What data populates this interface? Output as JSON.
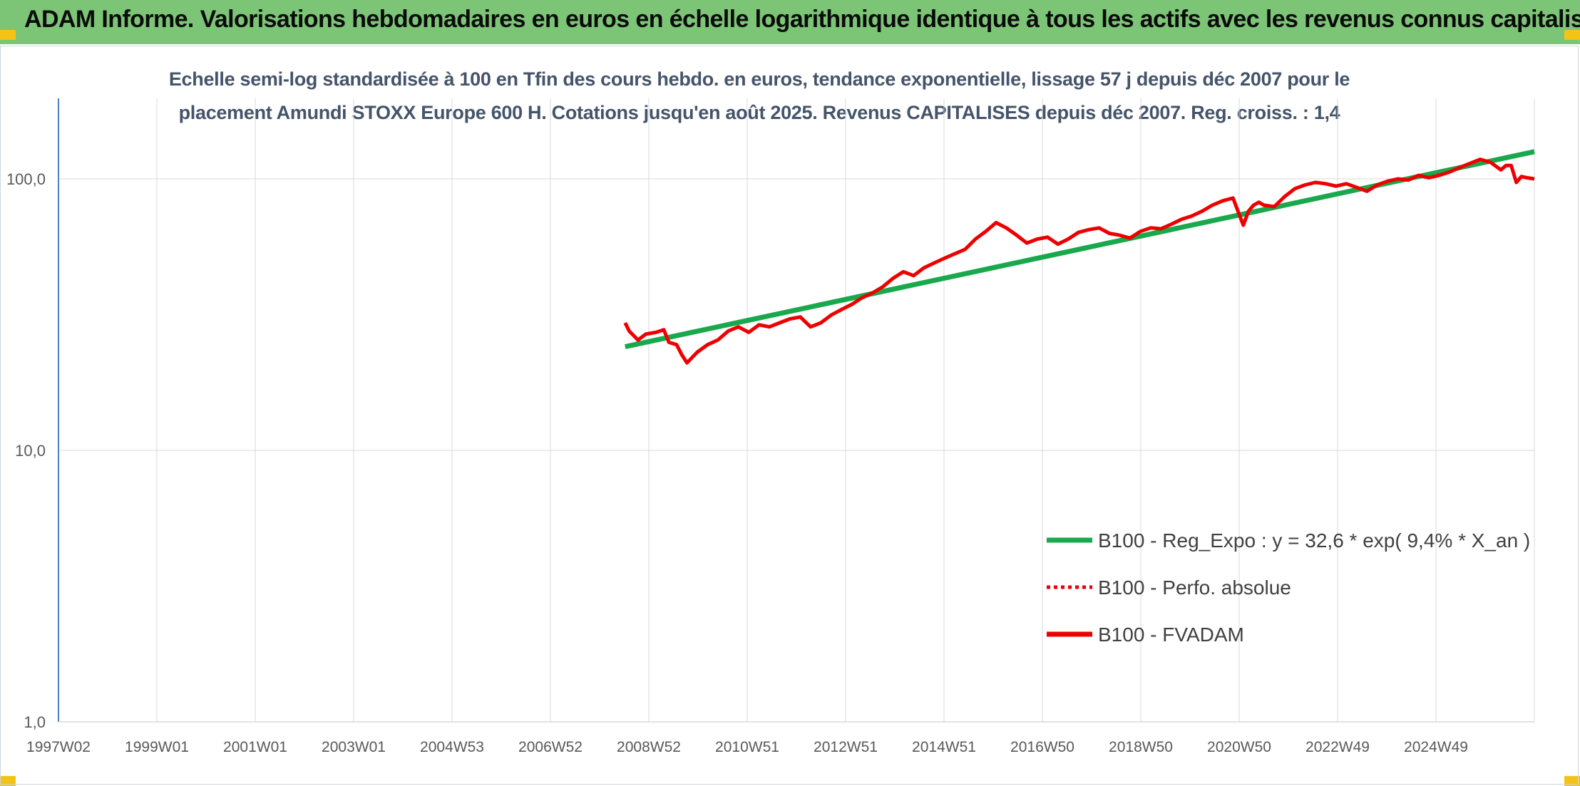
{
  "banner": {
    "title": "ADAM Informe. Valorisations hebdomadaires en euros en échelle logarithmique identique à tous les actifs avec les revenus connus capitalisés"
  },
  "colors": {
    "banner_bg": "#7cc576",
    "corner_marker": "#f3c316",
    "trend_line": "#19a84c",
    "price_line": "#ee0000",
    "grid": "#d9d9d9",
    "axis": "#4f81bd"
  },
  "chart_data": {
    "type": "line",
    "title_line1": "Echelle semi-log standardisée à 100 en Tfin des cours hebdo. en euros, tendance exponentielle, lissage 57 j depuis déc 2007 pour le",
    "title_line2": "placement Amundi STOXX Europe 600 H. Cotations jusqu'en août 2025. Revenus CAPITALISES depuis déc 2007. Reg. croiss. : 1,4",
    "yscale": "log",
    "ylim": [
      1,
      200
    ],
    "ytick_labels": [
      "1,0",
      "10,0",
      "100,0"
    ],
    "ytick_values": [
      1,
      10,
      100
    ],
    "x_tick_labels": [
      "1997W02",
      "1999W01",
      "2001W01",
      "2003W01",
      "2004W53",
      "2006W52",
      "2008W52",
      "2010W51",
      "2012W51",
      "2014W51",
      "2016W50",
      "2018W50",
      "2020W50",
      "2022W49",
      "2024W49"
    ],
    "x_range_years": [
      1997.0,
      2025.65
    ],
    "grid": "vertical and horizontal",
    "legend_position": "bottom-right, inside plot",
    "legend": [
      {
        "label": "B100 - Reg_Expo : y = 32,6 * exp( 9,4% *  X_an )",
        "style": "solid",
        "color": "#19a84c"
      },
      {
        "label": "B100 - Perfo. absolue",
        "style": "dotted",
        "color": "#ee0000"
      },
      {
        "label": "B100 - FVADAM",
        "style": "solid",
        "color": "#ee0000"
      }
    ],
    "series": [
      {
        "name": "B100 - Reg_Expo : y = 32,6 * exp( 9,4% *  X_an )",
        "kind": "trend",
        "x": [
          2008.0,
          2025.65
        ],
        "y": [
          24.1,
          126.0
        ]
      },
      {
        "name": "B100 - FVADAM",
        "kind": "price",
        "x": [
          2008.0,
          2008.08,
          2008.25,
          2008.4,
          2008.6,
          2008.75,
          2008.85,
          2009.0,
          2009.1,
          2009.2,
          2009.4,
          2009.6,
          2009.8,
          2010.0,
          2010.2,
          2010.4,
          2010.6,
          2010.8,
          2011.0,
          2011.2,
          2011.4,
          2011.6,
          2011.8,
          2012.0,
          2012.2,
          2012.4,
          2012.6,
          2012.8,
          2013.0,
          2013.2,
          2013.4,
          2013.6,
          2013.8,
          2014.0,
          2014.2,
          2014.4,
          2014.6,
          2014.8,
          2015.0,
          2015.2,
          2015.4,
          2015.6,
          2015.8,
          2016.0,
          2016.2,
          2016.4,
          2016.6,
          2016.8,
          2017.0,
          2017.2,
          2017.4,
          2017.6,
          2017.8,
          2018.0,
          2018.2,
          2018.4,
          2018.6,
          2018.8,
          2019.0,
          2019.2,
          2019.4,
          2019.6,
          2019.8,
          2020.0,
          2020.1,
          2020.2,
          2020.3,
          2020.4,
          2020.6,
          2020.8,
          2021.0,
          2021.2,
          2021.4,
          2021.6,
          2021.8,
          2022.0,
          2022.2,
          2022.4,
          2022.6,
          2022.8,
          2023.0,
          2023.2,
          2023.4,
          2023.6,
          2023.8,
          2024.0,
          2024.2,
          2024.4,
          2024.6,
          2024.8,
          2025.0,
          2025.1,
          2025.2,
          2025.3,
          2025.4,
          2025.5,
          2025.65
        ],
        "y": [
          29.5,
          27.5,
          25.5,
          26.8,
          27.2,
          27.8,
          25.0,
          24.5,
          22.5,
          21.0,
          23.0,
          24.5,
          25.5,
          27.5,
          28.5,
          27.2,
          29.0,
          28.5,
          29.5,
          30.5,
          31.0,
          28.5,
          29.5,
          31.5,
          33.0,
          34.5,
          36.5,
          38.0,
          40.0,
          43.0,
          45.5,
          44.0,
          47.0,
          49.0,
          51.0,
          53.0,
          55.0,
          60.0,
          64.0,
          69.0,
          66.0,
          62.0,
          58.0,
          60.0,
          61.0,
          57.5,
          60.0,
          63.5,
          65.0,
          66.0,
          63.0,
          62.0,
          60.5,
          64.0,
          66.0,
          65.5,
          68.0,
          71.0,
          73.0,
          76.0,
          80.0,
          83.0,
          85.0,
          67.5,
          76.0,
          80.0,
          82.0,
          80.0,
          79.0,
          86.0,
          92.0,
          95.0,
          97.0,
          96.0,
          94.0,
          96.0,
          93.0,
          90.0,
          95.0,
          98.0,
          100.0,
          99.0,
          103.0,
          101.0,
          103.0,
          106.0,
          110.0,
          114.0,
          118.0,
          115.0,
          108.0,
          112.0,
          112.0,
          97.0,
          102.0,
          101.0,
          100.0
        ]
      }
    ]
  }
}
